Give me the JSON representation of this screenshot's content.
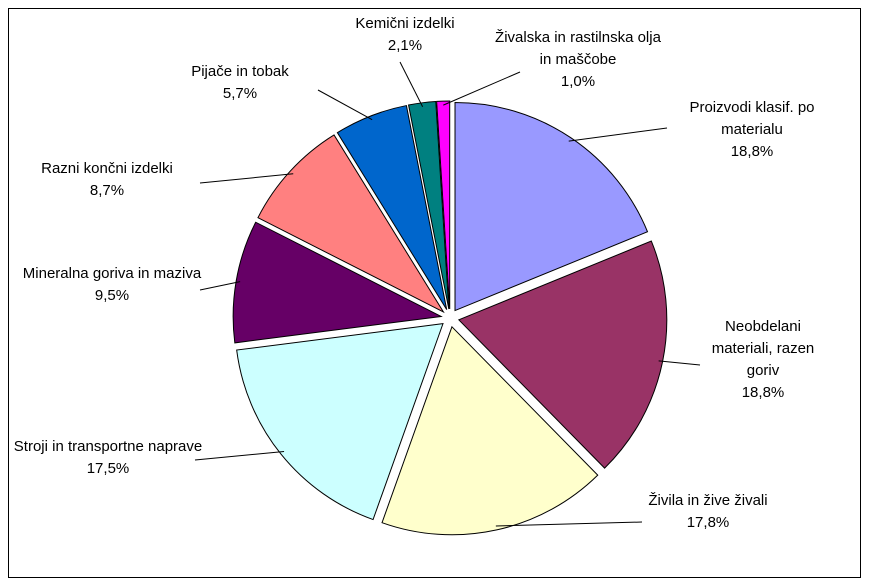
{
  "chart_data": {
    "type": "pie",
    "categories": [
      "Proizvodi klasif. po materialu",
      "Neobdelani materiali, razen goriv",
      "Živila in žive živali",
      "Stroji in transportne naprave",
      "Mineralna goriva in maziva",
      "Razni končni izdelki",
      "Pijače in tobak",
      "Kemični izdelki",
      "Živalska in rastilnska olja in maščobe"
    ],
    "values": [
      18.8,
      18.8,
      17.8,
      17.5,
      9.5,
      8.7,
      5.7,
      2.1,
      1.0
    ],
    "value_labels": [
      "18,8%",
      "18,8%",
      "17,8%",
      "17,5%",
      "9,5%",
      "8,7%",
      "5,7%",
      "2,1%",
      "1,0%"
    ],
    "colors": [
      "#9999ff",
      "#993366",
      "#ffffcc",
      "#ccffff",
      "#660066",
      "#ff8080",
      "#0066cc",
      "#008080",
      "#ff00ff"
    ]
  }
}
